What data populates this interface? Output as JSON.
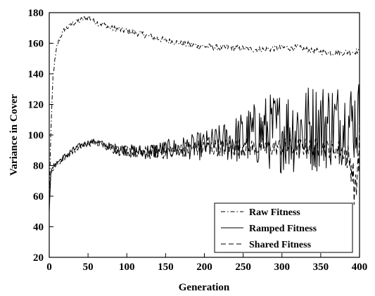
{
  "chart_data": {
    "type": "line",
    "title": "",
    "xlabel": "Generation",
    "ylabel": "Variance in Cover",
    "xlim": [
      0,
      400
    ],
    "ylim": [
      20,
      180
    ],
    "x_ticks": [
      0,
      50,
      100,
      150,
      200,
      250,
      300,
      350,
      400
    ],
    "y_ticks": [
      20,
      40,
      60,
      80,
      100,
      120,
      140,
      160,
      180
    ],
    "grid": false,
    "legend_position": "bottom-right",
    "series": [
      {
        "name": "Raw Fitness",
        "style": "dash-dot",
        "x": [
          0,
          2,
          5,
          10,
          15,
          20,
          30,
          40,
          50,
          60,
          70,
          80,
          90,
          100,
          120,
          140,
          160,
          180,
          200,
          220,
          240,
          260,
          280,
          300,
          320,
          340,
          360,
          380,
          400
        ],
        "y": [
          55,
          100,
          140,
          158,
          165,
          169,
          173,
          175,
          177,
          174,
          172,
          170,
          169,
          168,
          166,
          163,
          161,
          159,
          158,
          157,
          157,
          156,
          156,
          157,
          157,
          155,
          154,
          154,
          155
        ],
        "noise": [
          0,
          1,
          2,
          2,
          2,
          2,
          2,
          2,
          2,
          2,
          2,
          2,
          2,
          2,
          2,
          2,
          2,
          2,
          2,
          2,
          2,
          2,
          2,
          2,
          2,
          2,
          2,
          2,
          2
        ]
      },
      {
        "name": "Ramped Fitness",
        "style": "solid",
        "x": [
          0,
          2,
          5,
          10,
          20,
          30,
          40,
          50,
          60,
          70,
          80,
          100,
          120,
          140,
          160,
          180,
          200,
          220,
          240,
          260,
          280,
          300,
          320,
          340,
          360,
          380,
          400
        ],
        "y": [
          50,
          75,
          79,
          82,
          86,
          90,
          93,
          95,
          96,
          94,
          92,
          90,
          89,
          90,
          91,
          92,
          93,
          95,
          97,
          100,
          102,
          103,
          104,
          105,
          107,
          108,
          110
        ],
        "noise": [
          0,
          1,
          2,
          2,
          2,
          2,
          2,
          2,
          2,
          2,
          3,
          4,
          5,
          6,
          7,
          8,
          10,
          12,
          16,
          20,
          25,
          28,
          30,
          30,
          30,
          28,
          28
        ]
      },
      {
        "name": "Shared Fitness",
        "style": "dashed",
        "x": [
          0,
          2,
          5,
          10,
          20,
          30,
          40,
          50,
          60,
          70,
          80,
          100,
          120,
          140,
          160,
          180,
          200,
          220,
          240,
          260,
          280,
          300,
          320,
          340,
          360,
          380,
          390,
          395,
          400
        ],
        "y": [
          60,
          74,
          78,
          81,
          85,
          89,
          92,
          94,
          95,
          93,
          91,
          89,
          88,
          89,
          90,
          91,
          92,
          92,
          92,
          92,
          92,
          92,
          92,
          92,
          91,
          90,
          80,
          60,
          100
        ],
        "noise": [
          0,
          1,
          2,
          2,
          2,
          2,
          2,
          2,
          2,
          2,
          3,
          4,
          4,
          5,
          5,
          5,
          6,
          6,
          6,
          6,
          6,
          6,
          6,
          6,
          6,
          7,
          12,
          15,
          20
        ]
      }
    ]
  }
}
